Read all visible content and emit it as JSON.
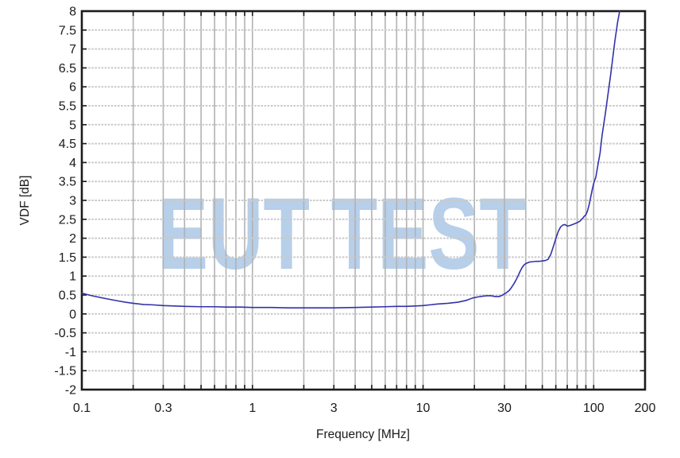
{
  "chart_data": {
    "type": "line",
    "title": "",
    "xlabel": "Frequency [MHz]",
    "ylabel": "VDF [dB]",
    "x_scale": "log",
    "xlim": [
      0.1,
      200
    ],
    "ylim": [
      -2,
      8
    ],
    "x_tick_labels": [
      "0.1",
      "0.3",
      "1",
      "3",
      "10",
      "30",
      "100",
      "200"
    ],
    "x_tick_values": [
      0.1,
      0.3,
      1,
      3,
      10,
      30,
      100,
      200
    ],
    "y_tick_step": 0.5,
    "grid": true,
    "legend": "none",
    "watermark": "EUT TEST",
    "series": [
      {
        "name": "VDF",
        "color": "#3232aa",
        "points": [
          [
            0.1,
            0.55
          ],
          [
            0.11,
            0.5
          ],
          [
            0.12,
            0.46
          ],
          [
            0.14,
            0.4
          ],
          [
            0.16,
            0.35
          ],
          [
            0.18,
            0.31
          ],
          [
            0.2,
            0.28
          ],
          [
            0.23,
            0.25
          ],
          [
            0.26,
            0.24
          ],
          [
            0.3,
            0.22
          ],
          [
            0.35,
            0.21
          ],
          [
            0.4,
            0.2
          ],
          [
            0.5,
            0.19
          ],
          [
            0.6,
            0.19
          ],
          [
            0.7,
            0.18
          ],
          [
            0.85,
            0.18
          ],
          [
            1,
            0.17
          ],
          [
            1.3,
            0.17
          ],
          [
            1.6,
            0.16
          ],
          [
            2,
            0.16
          ],
          [
            2.5,
            0.16
          ],
          [
            3,
            0.16
          ],
          [
            4,
            0.17
          ],
          [
            5,
            0.18
          ],
          [
            6,
            0.19
          ],
          [
            7,
            0.2
          ],
          [
            8,
            0.2
          ],
          [
            9,
            0.21
          ],
          [
            10,
            0.22
          ],
          [
            11,
            0.24
          ],
          [
            12,
            0.26
          ],
          [
            14,
            0.28
          ],
          [
            16,
            0.31
          ],
          [
            18,
            0.36
          ],
          [
            19.5,
            0.42
          ],
          [
            21,
            0.45
          ],
          [
            22.5,
            0.47
          ],
          [
            23.7,
            0.48
          ],
          [
            25,
            0.48
          ],
          [
            26.5,
            0.46
          ],
          [
            28,
            0.46
          ],
          [
            29,
            0.49
          ],
          [
            30,
            0.53
          ],
          [
            31,
            0.57
          ],
          [
            32,
            0.62
          ],
          [
            33,
            0.7
          ],
          [
            34,
            0.79
          ],
          [
            35,
            0.89
          ],
          [
            36,
            1.0
          ],
          [
            37,
            1.12
          ],
          [
            38,
            1.22
          ],
          [
            39,
            1.29
          ],
          [
            40,
            1.33
          ],
          [
            41,
            1.35
          ],
          [
            42,
            1.37
          ],
          [
            44,
            1.38
          ],
          [
            46,
            1.39
          ],
          [
            48,
            1.39
          ],
          [
            50,
            1.4
          ],
          [
            52,
            1.41
          ],
          [
            54,
            1.44
          ],
          [
            56,
            1.57
          ],
          [
            58,
            1.78
          ],
          [
            60,
            1.99
          ],
          [
            62,
            2.18
          ],
          [
            64,
            2.3
          ],
          [
            66,
            2.35
          ],
          [
            68,
            2.36
          ],
          [
            70,
            2.32
          ],
          [
            72,
            2.33
          ],
          [
            75,
            2.36
          ],
          [
            78,
            2.39
          ],
          [
            80,
            2.41
          ],
          [
            83,
            2.45
          ],
          [
            86,
            2.52
          ],
          [
            88,
            2.58
          ],
          [
            90,
            2.62
          ],
          [
            92,
            2.72
          ],
          [
            94,
            2.88
          ],
          [
            96,
            3.08
          ],
          [
            98,
            3.28
          ],
          [
            100,
            3.45
          ],
          [
            103,
            3.62
          ],
          [
            106,
            3.95
          ],
          [
            109,
            4.25
          ],
          [
            112,
            4.72
          ],
          [
            117,
            5.29
          ],
          [
            121,
            5.77
          ],
          [
            126,
            6.35
          ],
          [
            133,
            7.2
          ],
          [
            138,
            7.7
          ],
          [
            142,
            8.0
          ]
        ]
      }
    ]
  },
  "colors": {
    "curve": "#3232aa",
    "watermark": "#b7cfe9",
    "grid_vertical": "#b2b2b2",
    "grid_horizontal": "#c9c9c9",
    "axis": "#1c1c1c"
  }
}
